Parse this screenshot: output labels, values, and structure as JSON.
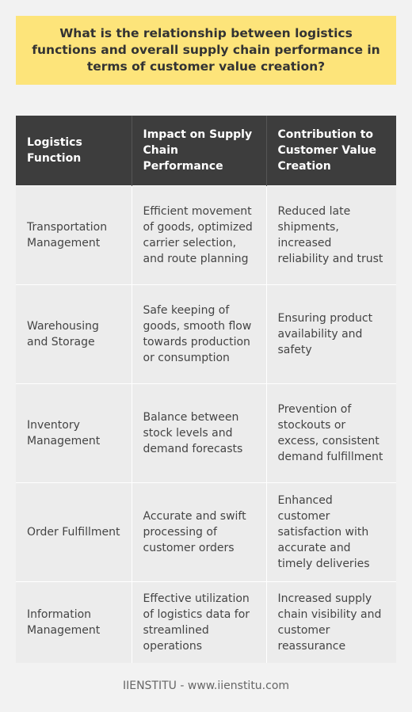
{
  "question": "What is the relationship between logistics functions and overall supply chain performance in terms of customer value creation?",
  "table": {
    "headers": [
      "Logistics Function",
      "Impact on Supply Chain Performance",
      "Contribution to Customer Value Creation"
    ],
    "rows": [
      {
        "function": "Transportation Management",
        "impact": "Efficient movement of goods, optimized carrier selection, and route planning",
        "contribution": "Reduced late shipments, increased reliability and trust"
      },
      {
        "function": "Warehousing and Storage",
        "impact": "Safe keeping of goods, smooth flow towards production or consumption",
        "contribution": "Ensuring product availability and safety"
      },
      {
        "function": "Inventory Management",
        "impact": "Balance between stock levels and demand forecasts",
        "contribution": "Prevention of stockouts or excess, consistent demand fulfillment"
      },
      {
        "function": "Order Fulfillment",
        "impact": "Accurate and swift processing of customer orders",
        "contribution": "Enhanced customer satisfaction with accurate and timely deliveries"
      },
      {
        "function": "Information Management",
        "impact": "Effective utilization of logistics data for streamlined operations",
        "contribution": "Increased supply chain visibility and customer reassurance"
      }
    ]
  },
  "footer": "IIENSTITU - www.iienstitu.com"
}
